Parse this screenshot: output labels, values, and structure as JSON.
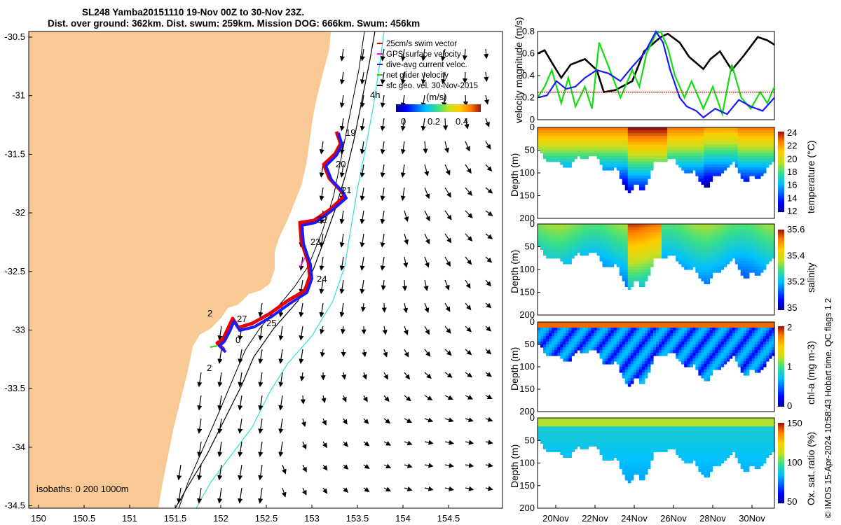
{
  "title_line1": "SL248 Yamba20151110 19-Nov 00Z to 30-Nov 23Z.",
  "title_line2": "Dist. over ground: 362km. Dist. swum: 259km. Mission DOG: 666km. Swum: 456km",
  "colors": {
    "land": "#f9c995",
    "track_red": "#e60000",
    "track_blue": "#1a1aff",
    "iso_cyan": "#33dddd",
    "green": "#11dd11",
    "magenta": "#ff00ff"
  },
  "map": {
    "xticks": [
      "150",
      "150.5",
      "151",
      "151.5",
      "152",
      "152.5",
      "153",
      "153.5",
      "154",
      "154.5"
    ],
    "yticks": [
      "-30.5",
      "-31",
      "-31.5",
      "-32",
      "-32.5",
      "-33",
      "-33.5",
      "-34",
      "-34.5"
    ],
    "legend": [
      "25cm/s swim vector",
      "GPS surface velocity",
      "dive-avg current veloc.",
      "net glider velocity",
      "sfc geo. vel. 30-Nov-2015"
    ],
    "colorbar_label": "(m/s)",
    "colorbar_ticks": [
      "0",
      "0.2",
      "0.4"
    ],
    "day_labels": [
      "19",
      "20",
      "21",
      "22",
      "23",
      "24",
      "25",
      "27",
      "0",
      "2",
      "2"
    ],
    "extra_label": "4h",
    "isobaths_label": "isobaths: 0   200  1000m"
  },
  "chart_data": [
    {
      "type": "line",
      "title": "",
      "ylabel": "velocity magnitude (m/s)",
      "ylim": [
        0,
        0.8
      ],
      "yticks": [
        "0",
        "0.2",
        "0.4",
        "0.6",
        "0.8"
      ],
      "series": [
        {
          "name": "sfc geo. vel. (black)",
          "color": "#000000",
          "x": [
            0,
            0.03,
            0.06,
            0.1,
            0.14,
            0.2,
            0.25,
            0.28,
            0.33,
            0.4,
            0.45,
            0.52,
            0.55,
            0.6,
            0.64,
            0.7,
            0.73,
            0.77,
            0.82,
            0.87,
            0.93,
            0.97,
            1
          ],
          "values": [
            0.6,
            0.63,
            0.52,
            0.38,
            0.5,
            0.55,
            0.45,
            0.25,
            0.27,
            0.35,
            0.62,
            0.75,
            0.78,
            0.7,
            0.57,
            0.46,
            0.55,
            0.62,
            0.45,
            0.58,
            0.75,
            0.72,
            0.68
          ]
        },
        {
          "name": "net glider velocity (green)",
          "color": "#11dd11",
          "x": [
            0,
            0.03,
            0.06,
            0.1,
            0.13,
            0.16,
            0.2,
            0.23,
            0.26,
            0.3,
            0.35,
            0.4,
            0.43,
            0.46,
            0.5,
            0.52,
            0.55,
            0.58,
            0.62,
            0.65,
            0.7,
            0.74,
            0.78,
            0.82,
            0.86,
            0.9,
            0.94,
            0.97,
            1
          ],
          "values": [
            0.2,
            0.3,
            0.45,
            0.15,
            0.38,
            0.12,
            0.3,
            0.1,
            0.7,
            0.48,
            0.2,
            0.45,
            0.3,
            0.6,
            0.78,
            0.8,
            0.65,
            0.4,
            0.2,
            0.35,
            0.1,
            0.3,
            0.05,
            0.5,
            0.2,
            0.1,
            0.25,
            0.15,
            0.3
          ]
        },
        {
          "name": "dive-avg current veloc. (blue)",
          "color": "#1a1aff",
          "x": [
            0,
            0.04,
            0.08,
            0.12,
            0.16,
            0.2,
            0.25,
            0.3,
            0.35,
            0.4,
            0.45,
            0.5,
            0.53,
            0.56,
            0.6,
            0.63,
            0.67,
            0.7,
            0.75,
            0.8,
            0.85,
            0.9,
            0.95,
            1
          ],
          "values": [
            0.2,
            0.22,
            0.35,
            0.28,
            0.3,
            0.38,
            0.45,
            0.42,
            0.35,
            0.48,
            0.6,
            0.8,
            0.7,
            0.45,
            0.2,
            0.12,
            0.08,
            0.02,
            0.1,
            0.05,
            0.18,
            0.12,
            0.08,
            0.2
          ]
        },
        {
          "name": "25cm/s swim (red)",
          "color": "#e60000",
          "x": [
            0,
            1
          ],
          "values": [
            0.25,
            0.25
          ]
        }
      ]
    },
    {
      "type": "heatmap",
      "ylabel": "Depth (m)",
      "yticks": [
        "0",
        "50",
        "100",
        "150",
        "200"
      ],
      "colorbar_label": "temperature (°C)",
      "colorbar_ticks": [
        "24",
        "22",
        "20",
        "18",
        "16",
        "14",
        "12"
      ],
      "color_range": [
        11,
        25
      ]
    },
    {
      "type": "heatmap",
      "ylabel": "Depth (m)",
      "yticks": [
        "0",
        "50",
        "100",
        "150",
        "200"
      ],
      "colorbar_label": "salinity",
      "colorbar_ticks": [
        "35.6",
        "35.4",
        "35.2",
        "35"
      ],
      "color_range": [
        34.85,
        35.75
      ]
    },
    {
      "type": "heatmap",
      "ylabel": "Depth (m)",
      "yticks": [
        "0",
        "50",
        "100",
        "150",
        "200"
      ],
      "colorbar_label": "chl-a (mg m-3)",
      "colorbar_ticks": [
        "2",
        "1",
        "0"
      ],
      "color_range": [
        0,
        2
      ]
    },
    {
      "type": "heatmap",
      "ylabel": "Depth (m)",
      "yticks": [
        "0",
        "50",
        "100",
        "150",
        "200"
      ],
      "xticks": [
        "20Nov",
        "22Nov",
        "24Nov",
        "26Nov",
        "28Nov",
        "30Nov"
      ],
      "colorbar_label": "Ox. sat. ratio (%)",
      "colorbar_ticks": [
        "150",
        "100",
        "50"
      ],
      "color_range": [
        25,
        175
      ]
    }
  ],
  "side_note": "© IMOS 15-Apr-2024 10:58:43 Hobart time. QC flags 1  2"
}
